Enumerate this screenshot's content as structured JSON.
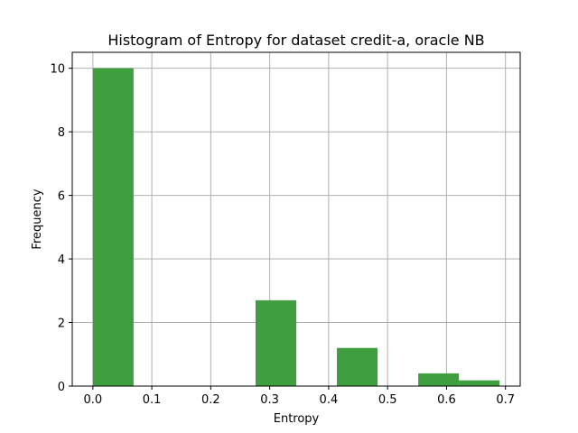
{
  "chart_data": {
    "type": "bar",
    "title": "Histogram of Entropy for dataset credit-a, oracle NB",
    "xlabel": "Entropy",
    "ylabel": "Frequency",
    "xlim": [
      -0.035,
      0.725
    ],
    "ylim": [
      0,
      10.5
    ],
    "xticks": [
      0.0,
      0.1,
      0.2,
      0.3,
      0.4,
      0.5,
      0.6,
      0.7
    ],
    "xtick_labels": [
      "0.0",
      "0.1",
      "0.2",
      "0.3",
      "0.4",
      "0.5",
      "0.6",
      "0.7"
    ],
    "yticks": [
      0,
      2,
      4,
      6,
      8,
      10
    ],
    "ytick_labels": [
      "0",
      "2",
      "4",
      "6",
      "8",
      "10"
    ],
    "grid": true,
    "bar_color": "#3f9f3f",
    "bins": [
      {
        "x0": 0.0,
        "x1": 0.069,
        "value": 10.0
      },
      {
        "x0": 0.069,
        "x1": 0.138,
        "value": 0
      },
      {
        "x0": 0.138,
        "x1": 0.207,
        "value": 0
      },
      {
        "x0": 0.207,
        "x1": 0.276,
        "value": 0
      },
      {
        "x0": 0.276,
        "x1": 0.345,
        "value": 2.7
      },
      {
        "x0": 0.345,
        "x1": 0.414,
        "value": 0
      },
      {
        "x0": 0.414,
        "x1": 0.483,
        "value": 1.2
      },
      {
        "x0": 0.483,
        "x1": 0.552,
        "value": 0
      },
      {
        "x0": 0.552,
        "x1": 0.621,
        "value": 0.4
      },
      {
        "x0": 0.621,
        "x1": 0.69,
        "value": 0.18
      }
    ]
  }
}
